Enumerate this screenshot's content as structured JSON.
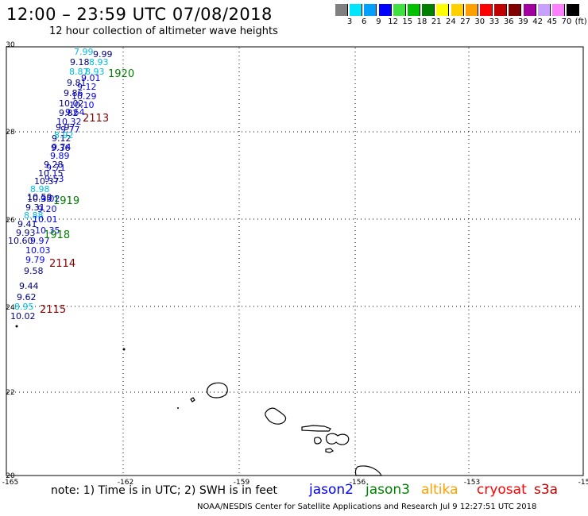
{
  "header": {
    "title": "12:00 – 23:59 UTC 07/08/2018",
    "subtitle": "12 hour collection of altimeter wave heights"
  },
  "color_scale": {
    "colors": [
      "#808080",
      "#00e6ff",
      "#00a0ff",
      "#0000ff",
      "#40e040",
      "#00c000",
      "#008000",
      "#ffff00",
      "#ffd000",
      "#ffa000",
      "#ff0000",
      "#c00000",
      "#800000",
      "#a000a0",
      "#c8a0ff",
      "#ff80ff",
      "#000000"
    ],
    "labels": [
      "3",
      "6",
      "9",
      "12",
      "15",
      "18",
      "21",
      "24",
      "27",
      "30",
      "33",
      "36",
      "39",
      "42",
      "45",
      "70",
      "(ft)"
    ]
  },
  "axes": {
    "lat_labels": [
      "30",
      "28",
      "26",
      "24",
      "22",
      "20"
    ],
    "lon_labels": [
      "-165",
      "-162",
      "-159",
      "-156",
      "-153",
      "-15"
    ]
  },
  "pass_labels": [
    {
      "text": "1920",
      "color": "#008000"
    },
    {
      "text": "2113",
      "color": "#800000"
    },
    {
      "text": "1919",
      "color": "#008000"
    },
    {
      "text": "1918",
      "color": "#008000"
    },
    {
      "text": "2114",
      "color": "#800000"
    },
    {
      "text": "2115",
      "color": "#800000"
    }
  ],
  "wave_heights": [
    {
      "text": "7.99",
      "color": "#00c0e0"
    },
    {
      "text": "9.99",
      "color": "#000080"
    },
    {
      "text": "9.18",
      "color": "#000080"
    },
    {
      "text": "8.93",
      "color": "#00c0e0"
    },
    {
      "text": "8.87",
      "color": "#00c0e0"
    },
    {
      "text": "8.93",
      "color": "#00c0e0"
    },
    {
      "text": "9.01",
      "color": "#0000ff"
    },
    {
      "text": "9.81",
      "color": "#000080"
    },
    {
      "text": "9.12",
      "color": "#0000ff"
    },
    {
      "text": "9.86",
      "color": "#000080"
    },
    {
      "text": "10.29",
      "color": "#0000ff"
    },
    {
      "text": "10.02",
      "color": "#000080"
    },
    {
      "text": "10.10",
      "color": "#0000ff"
    },
    {
      "text": "9.82",
      "color": "#000080"
    },
    {
      "text": "9.64",
      "color": "#0000ff"
    },
    {
      "text": "10.32",
      "color": "#0000ff"
    },
    {
      "text": "9.97",
      "color": "#000080"
    },
    {
      "text": "9.77",
      "color": "#0000ff"
    },
    {
      "text": "9.12",
      "color": "#000080"
    },
    {
      "text": "8.92",
      "color": "#00c0e0"
    },
    {
      "text": "9.36",
      "color": "#000080"
    },
    {
      "text": "9.74",
      "color": "#0000ff"
    },
    {
      "text": "9.89",
      "color": "#0000ff"
    },
    {
      "text": "9.28",
      "color": "#000080"
    },
    {
      "text": "9.71",
      "color": "#0000ff"
    },
    {
      "text": "10.15",
      "color": "#000080"
    },
    {
      "text": "9.53",
      "color": "#0000ff"
    },
    {
      "text": "10.37",
      "color": "#000080"
    },
    {
      "text": "8.98",
      "color": "#00c0e0"
    },
    {
      "text": "10.59",
      "color": "#000080"
    },
    {
      "text": "10.30",
      "color": "#000080"
    },
    {
      "text": "9.02",
      "color": "#0000ff"
    },
    {
      "text": "9.31",
      "color": "#000080"
    },
    {
      "text": "9.20",
      "color": "#0000ff"
    },
    {
      "text": "8.88",
      "color": "#00c0e0"
    },
    {
      "text": "10.01",
      "color": "#0000ff"
    },
    {
      "text": "9.41",
      "color": "#000080"
    },
    {
      "text": "10.35",
      "color": "#0000ff"
    },
    {
      "text": "9.93",
      "color": "#000080"
    },
    {
      "text": "10.60",
      "color": "#000080"
    },
    {
      "text": "9.97",
      "color": "#0000ff"
    },
    {
      "text": "10.03",
      "color": "#0000ff"
    },
    {
      "text": "9.79",
      "color": "#0000ff"
    },
    {
      "text": "9.58",
      "color": "#000080"
    },
    {
      "text": "9.44",
      "color": "#000080"
    },
    {
      "text": "9.62",
      "color": "#000080"
    },
    {
      "text": "8.95",
      "color": "#00c0e0"
    },
    {
      "text": "10.02",
      "color": "#000080"
    }
  ],
  "footer": {
    "note": "note:  1) Time is in UTC;  2) SWH is in feet",
    "satellites": [
      {
        "name": "jason2",
        "color": "#0000ff"
      },
      {
        "name": "jason3",
        "color": "#008000"
      },
      {
        "name": "altika",
        "color": "#ffa000"
      },
      {
        "name": "cryosat",
        "color": "#ff0000"
      },
      {
        "name": "s3a",
        "color": "#c00000"
      }
    ],
    "credit": "NOAA/NESDIS Center for Satellite Applications and Research    Jul  9 12:27:51 UTC 2018"
  }
}
